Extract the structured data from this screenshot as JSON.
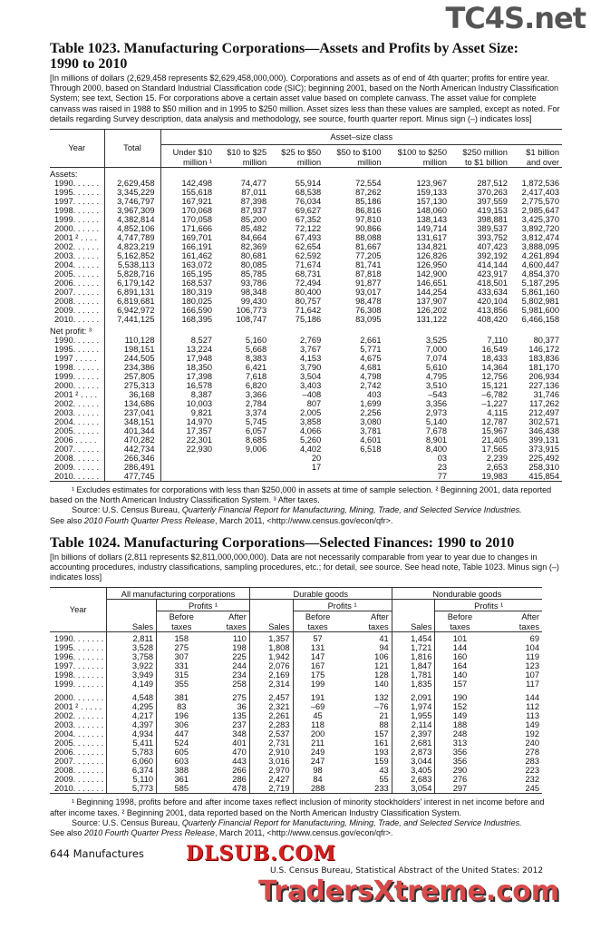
{
  "watermarks": {
    "top": "TC4S.net",
    "middle": "DLSUB.COM",
    "bottom": "TradersXtreme.com"
  },
  "t1023": {
    "title_line1": "Table 1023. Manufacturing Corporations—Assets and Profits by Asset Size:",
    "title_line2": "1990 to 2010",
    "headnote": "[In millions of dollars (2,629,458 represents $2,629,458,000,000).  Corporations and assets as of end of 4th quarter; profits for entire year. Through 2000, based on Standard Industrial Classification code (SIC); beginning 2001, based on the North American Industry Classification System; see text, Section 15. For corporations above a certain asset value based on complete canvass. The asset value for complete canvass was raised  in 1988 to $50 million and in 1995 to $250 million.  Asset sizes less than these values are sampled, except as noted. For details regarding Survey description, data analysis and methodology,  see source, fourth quarter report. Minus sign (–) indicates loss]",
    "col_year": "Year",
    "col_total": "Total",
    "group": "Asset–size class",
    "cols": [
      [
        "Under $10",
        "million ¹"
      ],
      [
        "$10 to $25",
        "million"
      ],
      [
        "$25 to $50",
        "million"
      ],
      [
        "$50 to $100",
        "million"
      ],
      [
        "$100 to $250",
        "million"
      ],
      [
        "$250 million",
        "to $1 billion"
      ],
      [
        "$1 billion",
        "and over"
      ]
    ],
    "sections": [
      {
        "label": "Assets:",
        "rows": [
          [
            "1990. . . . . .",
            "2,629,458",
            "142,498",
            "74,477",
            "55,914",
            "72,554",
            "123,967",
            "287,512",
            "1,872,536"
          ],
          [
            "1995. . . . . .",
            "3,345,229",
            "155,618",
            "87,011",
            "68,538",
            "87,262",
            "159,133",
            "370,263",
            "2,417,403"
          ],
          [
            "1997. . . . . .",
            "3,746,797",
            "167,921",
            "87,398",
            "76,034",
            "85,186",
            "157,130",
            "397,559",
            "2,775,570"
          ],
          [
            "1998. . . . . .",
            "3,967,309",
            "170,068",
            "87,937",
            "69,627",
            "86,816",
            "148,060",
            "419,153",
            "2,985,647"
          ],
          [
            "1999. . . . . .",
            "4,382,814",
            "170,058",
            "85,200",
            "67,352",
            "97,810",
            "138,143",
            "398,881",
            "3,425,370"
          ],
          [
            "2000. . . . . .",
            "4,852,106",
            "171,666",
            "85,482",
            "72,122",
            "90,866",
            "149,714",
            "389,537",
            "3,892,720"
          ],
          [
            "2001 ² . . . .",
            "4,747,789",
            "169,701",
            "84,664",
            "67,493",
            "88,088",
            "131,617",
            "393,752",
            "3,812,474"
          ],
          [
            "2002. . . . . .",
            "4,823,219",
            "166,191",
            "82,369",
            "62,654",
            "81,667",
            "134,821",
            "407,423",
            "3,888,095"
          ],
          [
            "2003. . . . . .",
            "5,162,852",
            "161,462",
            "80,681",
            "62,592",
            "77,205",
            "126,826",
            "392,192",
            "4,261,894"
          ],
          [
            "2004. . . . . .",
            "5,538,113",
            "163,072",
            "80,085",
            "71,674",
            "81,741",
            "126,950",
            "414,144",
            "4,600,447"
          ],
          [
            "2005. . . . . .",
            "5,828,716",
            "165,195",
            "85,785",
            "68,731",
            "87,818",
            "142,900",
            "423,917",
            "4,854,370"
          ],
          [
            "2006. . . . . .",
            "6,179,142",
            "168,537",
            "93,786",
            "72,494",
            "91,877",
            "146,651",
            "418,501",
            "5,187,295"
          ],
          [
            "2007. . . . . .",
            "6,891,131",
            "180,319",
            "98,348",
            "80,400",
            "93,017",
            "144,254",
            "433,634",
            "5,861,160"
          ],
          [
            "2008. . . . . .",
            "6,819,681",
            "180,025",
            "99,430",
            "80,757",
            "98,478",
            "137,907",
            "420,104",
            "5,802,981"
          ],
          [
            "2009. . . . . .",
            "6,942,972",
            "166,590",
            "106,773",
            "71,642",
            "76,308",
            "126,202",
            "413,856",
            "5,981,600"
          ],
          [
            "2010. . . . . .",
            "7,441,125",
            "168,395",
            "108,747",
            "75,186",
            "83,095",
            "131,122",
            "408,420",
            "6,466,158"
          ]
        ]
      },
      {
        "label": "Net profit: ³",
        "rows": [
          [
            "1990. . . . . .",
            "110,128",
            "8,527",
            "5,160",
            "2,769",
            "2,661",
            "3,525",
            "7,110",
            "80,377"
          ],
          [
            "1995. . . . . .",
            "198,151",
            "13,224",
            "5,668",
            "3,767",
            "5,771",
            "7,000",
            "16,549",
            "146,172"
          ],
          [
            "1997 . . . . .",
            "244,505",
            "17,948",
            "8,383",
            "4,153",
            "4,675",
            "7,074",
            "18,433",
            "183,836"
          ],
          [
            "1998. . . . . .",
            "234,386",
            "18,350",
            "6,421",
            "3,790",
            "4,681",
            "5,610",
            "14,364",
            "181,170"
          ],
          [
            "1999. . . . . .",
            "257,805",
            "17,398",
            "7,618",
            "3,504",
            "4,798",
            "4,795",
            "12,756",
            "206,934"
          ],
          [
            "2000. . . . . .",
            "275,313",
            "16,578",
            "6,820",
            "3,403",
            "2,742",
            "3,510",
            "15,121",
            "227,136"
          ],
          [
            "2001 ² . . . .",
            "36,168",
            "8,387",
            "3,366",
            "–408",
            "403",
            "–543",
            "–6,782",
            "31,746"
          ],
          [
            "2002. . . . . .",
            "134,686",
            "10,003",
            "2,784",
            "807",
            "1,699",
            "3,356",
            "–1,227",
            "117,262"
          ],
          [
            "2003. . . . . .",
            "237,041",
            "9,821",
            "3,374",
            "2,005",
            "2,256",
            "2,973",
            "4,115",
            "212,497"
          ],
          [
            "2004. . . . . .",
            "348,151",
            "14,970",
            "5,745",
            "3,858",
            "3,080",
            "5,140",
            "12,787",
            "302,571"
          ],
          [
            "2005. . . . . .",
            "401,344",
            "17,357",
            "6,057",
            "4,066",
            "3,781",
            "7,678",
            "15,967",
            "346,438"
          ],
          [
            "2006 . . . . .",
            "470,282",
            "22,301",
            "8,685",
            "5,260",
            "4,601",
            "8,901",
            "21,405",
            "399,131"
          ],
          [
            "2007. . . . . .",
            "442,734",
            "22,930",
            "9,006",
            "4,402",
            "6,518",
            "8,400",
            "17,565",
            "373,915"
          ],
          [
            "2008. . . . . .",
            "266,346",
            "",
            "",
            "20",
            "",
            "03",
            "2,239",
            "225,492"
          ],
          [
            "2009. . . . . .",
            "286,491",
            "",
            "",
            "17",
            "",
            "23",
            "2,653",
            "258,310"
          ],
          [
            "2010. . . . . .",
            "477,745",
            "",
            "",
            "",
            "",
            "77",
            "19,983",
            "415,854"
          ]
        ]
      }
    ],
    "footnote": "¹ Excludes estimates for corporations with less than  $250,000 in assets at time of sample selection. ² Beginning 2001, data reported based on the North American Industry Classification System. ³ After taxes.",
    "source_prefix": "Source: U.S. Census Bureau, ",
    "source_title": "Quarterly Financial Report for Manufacturing, Mining, Trade, and Selected Service Industries.",
    "see_prefix": "See also ",
    "see_title": "2010 Fourth Quarter Press Release",
    "see_suffix": ", March 2011, <http://www.census.gov/econ/qfr>."
  },
  "t1024": {
    "title": "Table 1024. Manufacturing Corporations—Selected Finances: 1990 to 2010",
    "headnote": "[In billions of dollars (2,811 represents $2,811,000,000,000). Data are not necessarily comparable from year to year due to changes in  accounting procedures, industry classifications, sampling procedures, etc.; for detail, see source. See head note, Table 1023. Minus sign (–) indicates loss]",
    "col_year": "Year",
    "groups": [
      "All manufacturing corporations",
      "Durable goods",
      "Nondurable goods"
    ],
    "profits": "Profits ¹",
    "sales": "Sales",
    "before": [
      "Before",
      "taxes"
    ],
    "after": [
      "After",
      "taxes"
    ],
    "rows": [
      [
        "1990. . . . . . .",
        "2,811",
        "158",
        "110",
        "1,357",
        "57",
        "41",
        "1,454",
        "101",
        "69"
      ],
      [
        "1995. . . . . . .",
        "3,528",
        "275",
        "198",
        "1,808",
        "131",
        "94",
        "1,721",
        "144",
        "104"
      ],
      [
        "1996. . . . . . .",
        "3,758",
        "307",
        "225",
        "1,942",
        "147",
        "106",
        "1,816",
        "160",
        "119"
      ],
      [
        "1997. . . . . . .",
        "3,922",
        "331",
        "244",
        "2,076",
        "167",
        "121",
        "1,847",
        "164",
        "123"
      ],
      [
        "1998. . . . . . .",
        "3,949",
        "315",
        "234",
        "2,169",
        "175",
        "128",
        "1,781",
        "140",
        "107"
      ],
      [
        "1999. . . . . . .",
        "4,149",
        "355",
        "258",
        "2,314",
        "199",
        "140",
        "1,835",
        "157",
        "117"
      ],
      [
        "2000. . . . . . .",
        "4,548",
        "381",
        "275",
        "2,457",
        "191",
        "132",
        "2,091",
        "190",
        "144"
      ],
      [
        "2001 ² . . . . .",
        "4,295",
        "83",
        "36",
        "2,321",
        "–69",
        "–76",
        "1,974",
        "152",
        "112"
      ],
      [
        "2002. . . . . . .",
        "4,217",
        "196",
        "135",
        "2,261",
        "45",
        "21",
        "1,955",
        "149",
        "113"
      ],
      [
        "2003. . . . . . .",
        "4,397",
        "306",
        "237",
        "2,283",
        "118",
        "88",
        "2,114",
        "188",
        "149"
      ],
      [
        "2004. . . . . . .",
        "4,934",
        "447",
        "348",
        "2,537",
        "200",
        "157",
        "2,397",
        "248",
        "192"
      ],
      [
        "2005. . . . . . .",
        "5,411",
        "524",
        "401",
        "2,731",
        "211",
        "161",
        "2,681",
        "313",
        "240"
      ],
      [
        "2006. . . . . . .",
        "5,783",
        "605",
        "470",
        "2,910",
        "249",
        "193",
        "2,873",
        "356",
        "278"
      ],
      [
        "2007. . . . . . .",
        "6,060",
        "603",
        "443",
        "3,016",
        "247",
        "159",
        "3,044",
        "356",
        "283"
      ],
      [
        "2008. . . . . . .",
        "6,374",
        "388",
        "266",
        "2,970",
        "98",
        "43",
        "3,405",
        "290",
        "223"
      ],
      [
        "2009. . . . . . .",
        "5,110",
        "361",
        "286",
        "2,427",
        "84",
        "55",
        "2,683",
        "276",
        "232"
      ],
      [
        "2010. . . . . . .",
        "5,773",
        "585",
        "478",
        "2,719",
        "288",
        "233",
        "3,054",
        "297",
        "245"
      ]
    ],
    "footnote": "¹ Beginning 1998, profits before and after income taxes reflect inclusion of minority stockholders' interest in net income before and after income taxes. ²  Beginning 2001, data reported based on the North American Industry Classification System.",
    "source_prefix": "Source: U.S. Census Bureau, ",
    "source_title": "Quarterly Financial Report for Manufacturing, Mining, Trade, and Selected Service Industries.",
    "see_prefix": "See also ",
    "see_title": "2010 Fourth Quarter Press Release",
    "see_suffix": ", March 2011, <http://www.census.gov/econ/qfr>."
  },
  "footer": {
    "page": "644  Manufactures",
    "publication": "U.S. Census Bureau, Statistical Abstract of the United States: 2012"
  }
}
